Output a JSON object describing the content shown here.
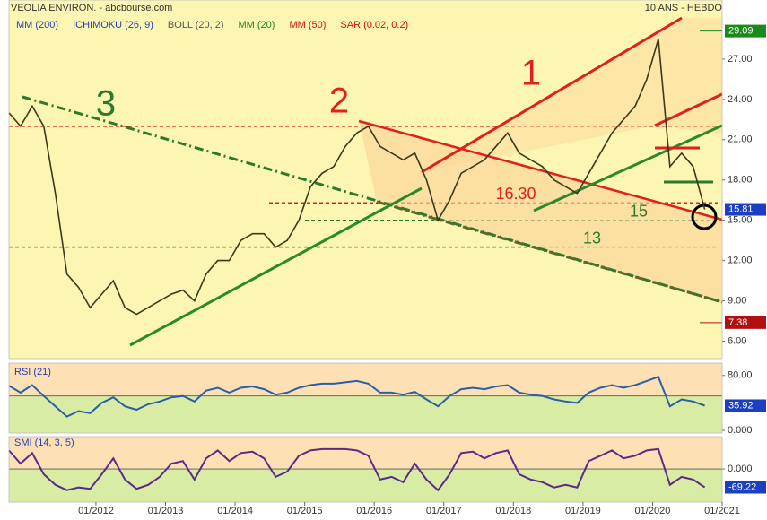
{
  "chart_data": [
    {
      "type": "line",
      "title": "VEOLIA ENVIRON. - abcbourse.com",
      "subtitle": "10 ANS - HEBDO",
      "legend": [
        {
          "name": "MM (200)",
          "color": "#1f3fbf"
        },
        {
          "name": "ICHIMOKU (26, 9)",
          "color": "#1f3fbf"
        },
        {
          "name": "BOLL (20, 2)",
          "color": "#555555"
        },
        {
          "name": "MM (20)",
          "color": "#1a8a1a"
        },
        {
          "name": "MM (50)",
          "color": "#d01010"
        },
        {
          "name": "SAR (0.02, 0.2)",
          "color": "#d01010"
        }
      ],
      "x": [
        "2010-10",
        "2010-12",
        "2011-02",
        "2011-04",
        "2011-06",
        "2011-08",
        "2011-10",
        "2011-12",
        "2012-02",
        "2012-04",
        "2012-06",
        "2012-08",
        "2012-10",
        "2012-12",
        "2013-02",
        "2013-04",
        "2013-06",
        "2013-08",
        "2013-10",
        "2013-12",
        "2014-02",
        "2014-04",
        "2014-06",
        "2014-08",
        "2014-10",
        "2014-12",
        "2015-02",
        "2015-04",
        "2015-06",
        "2015-08",
        "2015-10",
        "2015-12",
        "2016-02",
        "2016-04",
        "2016-06",
        "2016-08",
        "2016-10",
        "2016-12",
        "2017-02",
        "2017-04",
        "2017-06",
        "2017-08",
        "2017-10",
        "2017-12",
        "2018-02",
        "2018-04",
        "2018-06",
        "2018-08",
        "2018-10",
        "2018-12",
        "2019-02",
        "2019-04",
        "2019-06",
        "2019-08",
        "2019-10",
        "2019-12",
        "2020-02",
        "2020-04",
        "2020-06",
        "2020-08",
        "2020-10"
      ],
      "values": [
        23.0,
        22.0,
        23.5,
        22.0,
        17.0,
        11.0,
        10.0,
        8.5,
        9.5,
        10.5,
        8.5,
        8.0,
        8.5,
        9.0,
        9.5,
        9.8,
        9.0,
        11.0,
        12.0,
        12.0,
        13.5,
        14.0,
        14.0,
        13.0,
        13.5,
        15.0,
        17.5,
        18.5,
        19.0,
        20.5,
        21.5,
        22.0,
        20.5,
        20.0,
        19.5,
        20.0,
        18.0,
        15.0,
        16.5,
        18.5,
        19.0,
        19.5,
        20.5,
        21.5,
        20.0,
        19.5,
        19.0,
        18.0,
        17.5,
        17.0,
        18.5,
        20.0,
        21.5,
        22.5,
        23.5,
        25.5,
        28.5,
        19.0,
        20.0,
        19.0,
        15.81
      ],
      "color": "#3a3a1a",
      "xlim": [
        "2010-10",
        "2021-01"
      ],
      "xticks": [
        {
          "value": "2012-01",
          "label": "01/2012"
        },
        {
          "value": "2013-01",
          "label": "01/2013"
        },
        {
          "value": "2014-01",
          "label": "01/2014"
        },
        {
          "value": "2015-01",
          "label": "01/2015"
        },
        {
          "value": "2016-01",
          "label": "01/2016"
        },
        {
          "value": "2017-01",
          "label": "01/2017"
        },
        {
          "value": "2018-01",
          "label": "01/2018"
        },
        {
          "value": "2019-01",
          "label": "01/2019"
        },
        {
          "value": "2020-01",
          "label": "01/2020"
        },
        {
          "value": "2021-01",
          "label": "01/2021"
        }
      ],
      "ylim": [
        4.7,
        31.4
      ],
      "yticks": [
        {
          "value": 6,
          "label": "6.00"
        },
        {
          "value": 9,
          "label": "9.00"
        },
        {
          "value": 12,
          "label": "12.00"
        },
        {
          "value": 15,
          "label": "15.00"
        },
        {
          "value": 18,
          "label": "18.00"
        },
        {
          "value": 21,
          "label": "21.00"
        },
        {
          "value": 24,
          "label": "24.00"
        },
        {
          "value": 27,
          "label": "27.00"
        }
      ],
      "high": 29.09,
      "low": 7.38,
      "levels": [
        {
          "value": 22,
          "color": "#e02020"
        },
        {
          "value": 16.3,
          "label": "16.30",
          "color": "#e02020"
        },
        {
          "value": 15,
          "label": "15",
          "color": "#2a7a2a"
        },
        {
          "value": 13,
          "label": "13",
          "color": "#2a7a2a"
        }
      ],
      "annotations": [
        "1",
        "2",
        "3"
      ]
    },
    {
      "type": "line",
      "title": "RSI (21)",
      "values": [
        65,
        55,
        66,
        50,
        35,
        20,
        28,
        25,
        40,
        48,
        35,
        30,
        38,
        42,
        48,
        50,
        42,
        58,
        62,
        55,
        62,
        64,
        60,
        52,
        55,
        62,
        66,
        68,
        68,
        70,
        72,
        68,
        55,
        55,
        52,
        56,
        45,
        35,
        50,
        60,
        62,
        60,
        64,
        66,
        55,
        52,
        50,
        45,
        42,
        40,
        55,
        62,
        66,
        62,
        66,
        72,
        78,
        35,
        45,
        42,
        35.92
      ],
      "color": "#2a5fa8",
      "ylim": [
        -4,
        98
      ],
      "yticks": [
        {
          "value": 80,
          "label": "80.00"
        },
        {
          "value": 0,
          "label": "0.000"
        }
      ],
      "reference": 50
    },
    {
      "type": "line",
      "title": "SMI (14, 3, 5)",
      "values": [
        70,
        20,
        60,
        -20,
        -60,
        -80,
        -70,
        -75,
        -20,
        40,
        -40,
        -75,
        -60,
        -30,
        20,
        30,
        -40,
        40,
        70,
        30,
        60,
        65,
        40,
        -30,
        -10,
        50,
        70,
        75,
        75,
        75,
        70,
        50,
        -40,
        -30,
        -50,
        20,
        -40,
        -80,
        -20,
        60,
        65,
        40,
        60,
        70,
        -20,
        -40,
        -50,
        -70,
        -60,
        -70,
        30,
        50,
        70,
        40,
        50,
        70,
        75,
        -60,
        -30,
        -40,
        -69.22
      ],
      "color": "#5a2a8a",
      "ylim": [
        -125,
        122
      ],
      "yticks": [
        {
          "value": 0,
          "label": "0.000"
        }
      ],
      "reference": 0
    }
  ]
}
